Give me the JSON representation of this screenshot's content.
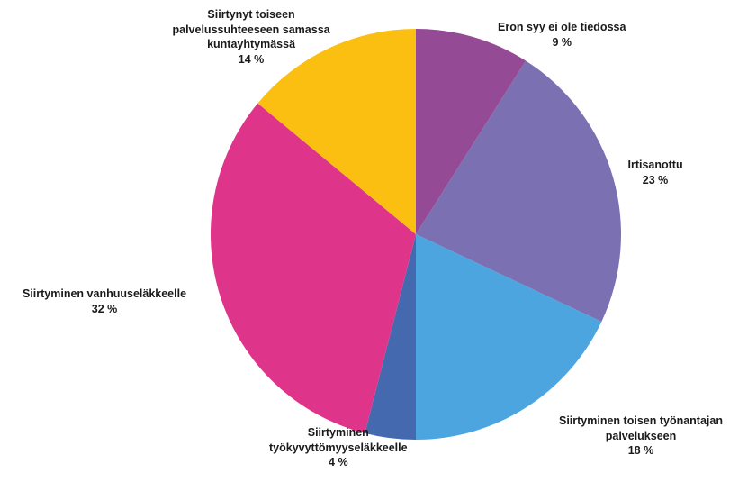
{
  "chart_data": {
    "type": "pie",
    "start_angle_deg": 0,
    "direction": "clockwise",
    "slices": [
      {
        "name": "eron-syy-ei-tiedossa",
        "label_lines": [
          "Eron syy ei ole tiedossa"
        ],
        "value": 9,
        "value_label": "9 %",
        "color": "#954A95"
      },
      {
        "name": "irtisanottu",
        "label_lines": [
          "Irtisanottu"
        ],
        "value": 23,
        "value_label": "23 %",
        "color": "#7A70B2"
      },
      {
        "name": "siirtyminen-toisen-tyonantajan-palvelukseen",
        "label_lines": [
          "Siirtyminen toisen työnantajan",
          "palvelukseen"
        ],
        "value": 18,
        "value_label": "18 %",
        "color": "#4DA5DF"
      },
      {
        "name": "siirtyminen-tyokyvyttomyyselakkeelle",
        "label_lines": [
          "Siirtyminen",
          "työkyvyttömyyseläkkeelle"
        ],
        "value": 4,
        "value_label": "4 %",
        "color": "#4569AE"
      },
      {
        "name": "siirtyminen-vanhuuselakkeelle",
        "label_lines": [
          "Siirtyminen vanhuuseläkkeelle"
        ],
        "value": 32,
        "value_label": "32 %",
        "color": "#DE358A"
      },
      {
        "name": "siirtynyt-toiseen-palvelussuhteeseen",
        "label_lines": [
          "Siirtynyt toiseen",
          "palvelussuhteeseen samassa",
          "kuntayhtymässä"
        ],
        "value": 14,
        "value_label": "14 %",
        "color": "#FBBF12"
      }
    ]
  }
}
